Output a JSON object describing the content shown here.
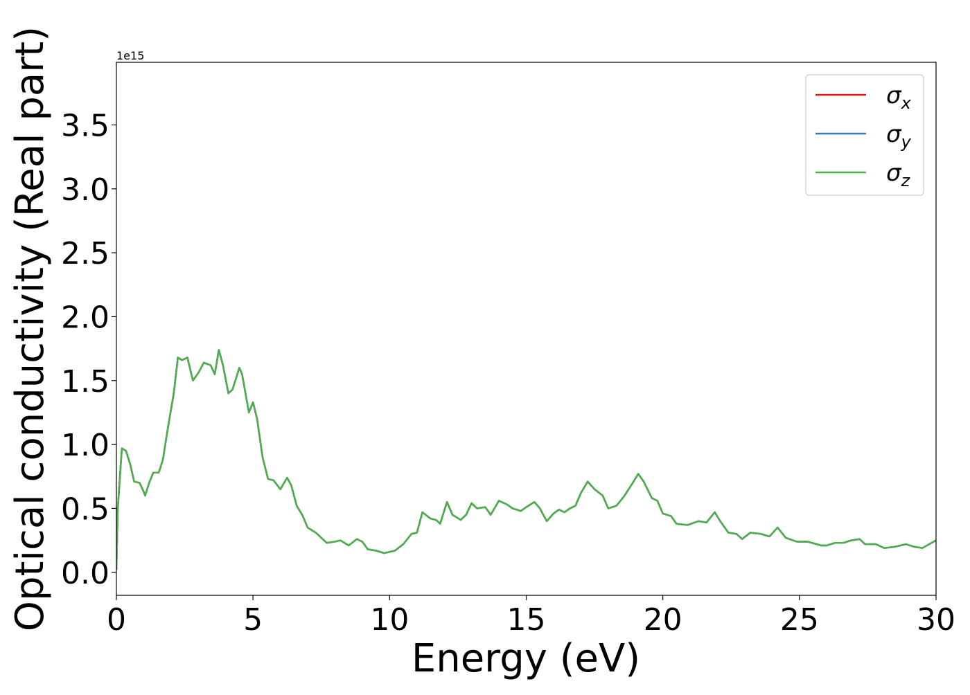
{
  "chart_data": {
    "type": "line",
    "x_label": "Energy (eV)",
    "y_label": "Optical conductivity (Real part)",
    "offset_text": "1e15",
    "x": [
      0,
      0.05,
      0.2,
      0.35,
      0.5,
      0.65,
      0.85,
      1.0,
      1.05,
      1.2,
      1.35,
      1.55,
      1.7,
      1.9,
      2.1,
      2.25,
      2.4,
      2.6,
      2.8,
      3.0,
      3.2,
      3.45,
      3.6,
      3.75,
      3.9,
      4.1,
      4.25,
      4.5,
      4.6,
      4.85,
      5.0,
      5.15,
      5.35,
      5.55,
      5.75,
      6.0,
      6.25,
      6.4,
      6.6,
      6.8,
      7.0,
      7.3,
      7.7,
      8.0,
      8.2,
      8.5,
      8.8,
      9.0,
      9.2,
      9.5,
      9.8,
      10.2,
      10.5,
      10.8,
      11.0,
      11.2,
      11.5,
      11.7,
      11.85,
      12.1,
      12.3,
      12.6,
      12.8,
      13.0,
      13.2,
      13.5,
      13.7,
      14.0,
      14.3,
      14.5,
      14.8,
      15.0,
      15.3,
      15.5,
      15.75,
      16.0,
      16.2,
      16.4,
      16.6,
      16.8,
      17.0,
      17.25,
      17.5,
      17.8,
      18.0,
      18.3,
      18.6,
      18.9,
      19.1,
      19.3,
      19.6,
      19.8,
      20.0,
      20.3,
      20.5,
      20.9,
      21.3,
      21.6,
      21.9,
      22.1,
      22.4,
      22.7,
      22.9,
      23.2,
      23.6,
      23.9,
      24.2,
      24.5,
      24.9,
      25.3,
      25.8,
      26.0,
      26.3,
      26.6,
      26.9,
      27.2,
      27.4,
      27.8,
      28.1,
      28.5,
      28.9,
      29.2,
      29.5,
      30.0
    ],
    "series": [
      {
        "name": "σx",
        "color": "#e41a1c",
        "values": [
          0.02,
          0.5,
          0.97,
          0.95,
          0.85,
          0.71,
          0.7,
          0.63,
          0.6,
          0.7,
          0.78,
          0.78,
          0.88,
          1.15,
          1.4,
          1.68,
          1.66,
          1.68,
          1.5,
          1.56,
          1.64,
          1.62,
          1.55,
          1.74,
          1.62,
          1.4,
          1.43,
          1.6,
          1.55,
          1.25,
          1.33,
          1.2,
          0.9,
          0.73,
          0.72,
          0.65,
          0.74,
          0.68,
          0.52,
          0.45,
          0.35,
          0.31,
          0.23,
          0.24,
          0.25,
          0.21,
          0.26,
          0.24,
          0.18,
          0.17,
          0.15,
          0.17,
          0.22,
          0.3,
          0.31,
          0.47,
          0.42,
          0.41,
          0.38,
          0.55,
          0.45,
          0.41,
          0.45,
          0.54,
          0.5,
          0.51,
          0.45,
          0.56,
          0.53,
          0.5,
          0.48,
          0.51,
          0.55,
          0.5,
          0.4,
          0.46,
          0.49,
          0.47,
          0.5,
          0.52,
          0.62,
          0.71,
          0.65,
          0.6,
          0.5,
          0.52,
          0.6,
          0.7,
          0.77,
          0.71,
          0.58,
          0.56,
          0.46,
          0.44,
          0.38,
          0.37,
          0.4,
          0.39,
          0.47,
          0.4,
          0.31,
          0.3,
          0.26,
          0.31,
          0.3,
          0.28,
          0.35,
          0.27,
          0.24,
          0.24,
          0.21,
          0.21,
          0.23,
          0.23,
          0.25,
          0.26,
          0.22,
          0.22,
          0.19,
          0.2,
          0.22,
          0.2,
          0.19,
          0.25
        ]
      },
      {
        "name": "σy",
        "color": "#377eb8",
        "values": [
          0.02,
          0.5,
          0.97,
          0.95,
          0.85,
          0.71,
          0.7,
          0.63,
          0.6,
          0.7,
          0.78,
          0.78,
          0.88,
          1.15,
          1.4,
          1.68,
          1.66,
          1.68,
          1.5,
          1.56,
          1.64,
          1.62,
          1.55,
          1.74,
          1.62,
          1.4,
          1.43,
          1.6,
          1.55,
          1.25,
          1.33,
          1.2,
          0.9,
          0.73,
          0.72,
          0.65,
          0.74,
          0.68,
          0.52,
          0.45,
          0.35,
          0.31,
          0.23,
          0.24,
          0.25,
          0.21,
          0.26,
          0.24,
          0.18,
          0.17,
          0.15,
          0.17,
          0.22,
          0.3,
          0.31,
          0.47,
          0.42,
          0.41,
          0.38,
          0.55,
          0.45,
          0.41,
          0.45,
          0.54,
          0.5,
          0.51,
          0.45,
          0.56,
          0.53,
          0.5,
          0.48,
          0.51,
          0.55,
          0.5,
          0.4,
          0.46,
          0.49,
          0.47,
          0.5,
          0.52,
          0.62,
          0.71,
          0.65,
          0.6,
          0.5,
          0.52,
          0.6,
          0.7,
          0.77,
          0.71,
          0.58,
          0.56,
          0.46,
          0.44,
          0.38,
          0.37,
          0.4,
          0.39,
          0.47,
          0.4,
          0.31,
          0.3,
          0.26,
          0.31,
          0.3,
          0.28,
          0.35,
          0.27,
          0.24,
          0.24,
          0.21,
          0.21,
          0.23,
          0.23,
          0.25,
          0.26,
          0.22,
          0.22,
          0.19,
          0.2,
          0.22,
          0.2,
          0.19,
          0.25
        ]
      },
      {
        "name": "σz",
        "color": "#4daf4a",
        "values": [
          0.02,
          0.5,
          0.97,
          0.95,
          0.85,
          0.71,
          0.7,
          0.63,
          0.6,
          0.7,
          0.78,
          0.78,
          0.88,
          1.15,
          1.4,
          1.68,
          1.66,
          1.68,
          1.5,
          1.56,
          1.64,
          1.62,
          1.55,
          1.74,
          1.62,
          1.4,
          1.43,
          1.6,
          1.55,
          1.25,
          1.33,
          1.2,
          0.9,
          0.73,
          0.72,
          0.65,
          0.74,
          0.68,
          0.52,
          0.45,
          0.35,
          0.31,
          0.23,
          0.24,
          0.25,
          0.21,
          0.26,
          0.24,
          0.18,
          0.17,
          0.15,
          0.17,
          0.22,
          0.3,
          0.31,
          0.47,
          0.42,
          0.41,
          0.38,
          0.55,
          0.45,
          0.41,
          0.45,
          0.54,
          0.5,
          0.51,
          0.45,
          0.56,
          0.53,
          0.5,
          0.48,
          0.51,
          0.55,
          0.5,
          0.4,
          0.46,
          0.49,
          0.47,
          0.5,
          0.52,
          0.62,
          0.71,
          0.65,
          0.6,
          0.5,
          0.52,
          0.6,
          0.7,
          0.77,
          0.71,
          0.58,
          0.56,
          0.46,
          0.44,
          0.38,
          0.37,
          0.4,
          0.39,
          0.47,
          0.4,
          0.31,
          0.3,
          0.26,
          0.31,
          0.3,
          0.28,
          0.35,
          0.27,
          0.24,
          0.24,
          0.21,
          0.21,
          0.23,
          0.23,
          0.25,
          0.26,
          0.22,
          0.22,
          0.19,
          0.2,
          0.22,
          0.2,
          0.19,
          0.25
        ]
      }
    ],
    "xlim": [
      0,
      30
    ],
    "xticks": [
      0,
      5,
      10,
      15,
      20,
      25,
      30
    ],
    "ylim": [
      -0.18,
      3.99
    ],
    "yticks": [
      {
        "value": 0,
        "label": "0.0"
      },
      0.5,
      {
        "value": 1,
        "label": "1.0"
      },
      1.5,
      {
        "value": 2,
        "label": "2.0"
      },
      2.5,
      {
        "value": 3,
        "label": "3.0"
      },
      3.5
    ],
    "grid": false,
    "legend_position": "upper-right"
  }
}
